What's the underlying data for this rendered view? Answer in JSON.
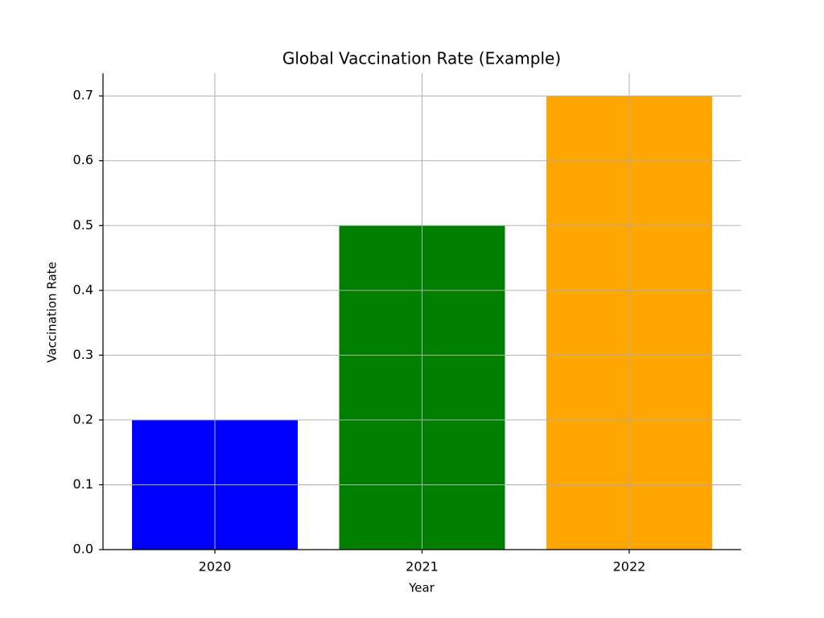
{
  "chart_data": {
    "type": "bar",
    "title": "Global Vaccination Rate (Example)",
    "x_label": "Year",
    "y_label": "Vaccination Rate",
    "categories": [
      "2020",
      "2021",
      "2022"
    ],
    "values": [
      0.2,
      0.5,
      0.7
    ],
    "colors": [
      "#0000ff",
      "#008000",
      "#ffa500"
    ],
    "ylim": [
      0,
      0.735
    ],
    "yticks": [
      {
        "value": 0,
        "label": "0.0"
      },
      0.1,
      0.2,
      0.3,
      0.4,
      0.5,
      0.6,
      0.7
    ],
    "grid": true
  }
}
